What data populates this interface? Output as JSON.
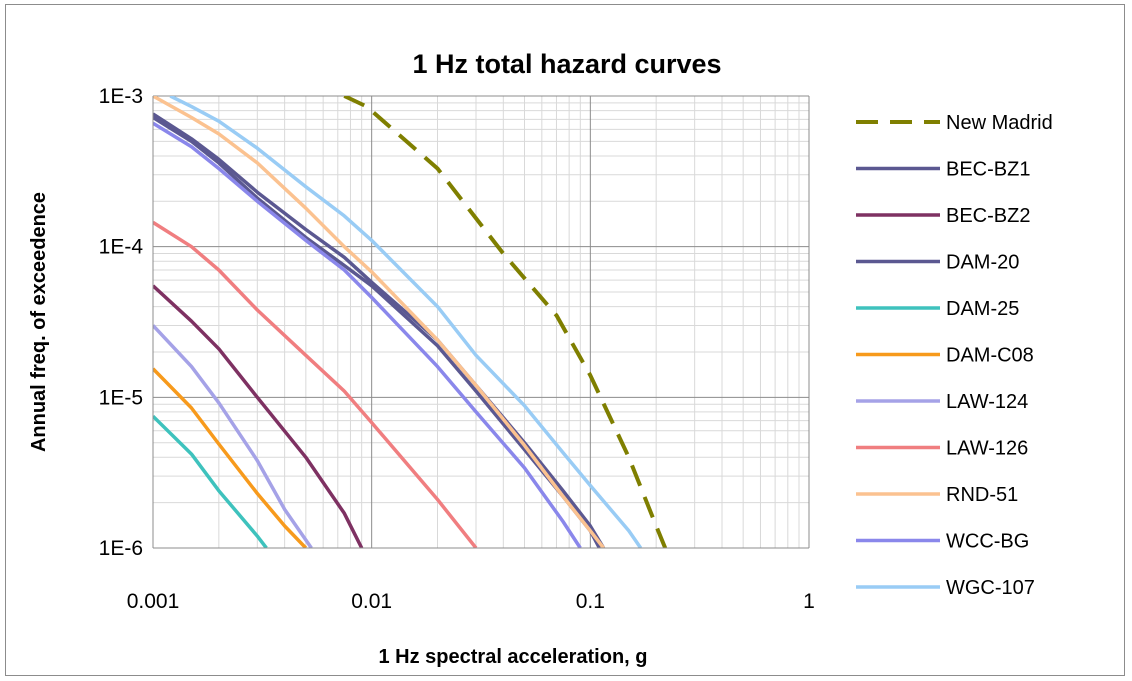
{
  "chart_data": {
    "type": "line",
    "title": "1  Hz total hazard curves",
    "xlabel": "1 Hz spectral acceleration, g",
    "ylabel": "Annual freq. of exceedence",
    "x_scale": "log",
    "y_scale": "log",
    "xlim": [
      0.001,
      1
    ],
    "ylim": [
      1e-06,
      0.001
    ],
    "x_ticks": [
      0.001,
      0.01,
      0.1,
      1
    ],
    "x_tick_labels": [
      "0.001",
      "0.01",
      "0.1",
      "1"
    ],
    "y_ticks": [
      1e-06,
      1e-05,
      0.0001,
      0.001
    ],
    "y_tick_labels": [
      "1E-6",
      "1E-5",
      "1E-4",
      "1E-3"
    ],
    "grid": true,
    "legend_position": "right",
    "series": [
      {
        "name": "New Madrid",
        "color": "#7f7f00",
        "dash": true,
        "points": [
          [
            0.0075,
            0.001
          ],
          [
            0.0095,
            0.00085
          ],
          [
            0.02,
            0.00033
          ],
          [
            0.04,
            9e-05
          ],
          [
            0.07,
            3.5e-05
          ],
          [
            0.1,
            1.4e-05
          ],
          [
            0.15,
            4e-06
          ],
          [
            0.2,
            1.4e-06
          ],
          [
            0.22,
            1e-06
          ]
        ]
      },
      {
        "name": "BEC-BZ1",
        "color": "#5b5891",
        "dash": false,
        "points": [
          [
            0.001,
            0.00072
          ],
          [
            0.0015,
            0.0005
          ],
          [
            0.002,
            0.00036
          ],
          [
            0.003,
            0.00021
          ],
          [
            0.005,
            0.000115
          ],
          [
            0.0075,
            7.5e-05
          ],
          [
            0.01,
            5.5e-05
          ],
          [
            0.02,
            2.2e-05
          ],
          [
            0.03,
            1.1e-05
          ],
          [
            0.05,
            4.5e-06
          ],
          [
            0.075,
            2.2e-06
          ],
          [
            0.1,
            1.3e-06
          ],
          [
            0.11,
            1e-06
          ]
        ]
      },
      {
        "name": "BEC-BZ2",
        "color": "#7e3162",
        "dash": false,
        "points": [
          [
            0.001,
            5.5e-05
          ],
          [
            0.0015,
            3.2e-05
          ],
          [
            0.002,
            2.1e-05
          ],
          [
            0.003,
            1e-05
          ],
          [
            0.005,
            4e-06
          ],
          [
            0.0075,
            1.7e-06
          ],
          [
            0.009,
            1e-06
          ]
        ]
      },
      {
        "name": "DAM-20",
        "color": "#5b5891",
        "dash": false,
        "points": [
          [
            0.001,
            0.00076
          ],
          [
            0.0015,
            0.00052
          ],
          [
            0.002,
            0.00038
          ],
          [
            0.003,
            0.00023
          ],
          [
            0.005,
            0.00013
          ],
          [
            0.0075,
            8.5e-05
          ],
          [
            0.01,
            5.8e-05
          ],
          [
            0.02,
            2.4e-05
          ],
          [
            0.03,
            1.2e-05
          ],
          [
            0.05,
            5e-06
          ],
          [
            0.075,
            2.4e-06
          ],
          [
            0.1,
            1.4e-06
          ],
          [
            0.115,
            1e-06
          ]
        ]
      },
      {
        "name": "DAM-25",
        "color": "#3ec2bd",
        "dash": false,
        "points": [
          [
            0.001,
            7.5e-06
          ],
          [
            0.0015,
            4.2e-06
          ],
          [
            0.002,
            2.4e-06
          ],
          [
            0.003,
            1.2e-06
          ],
          [
            0.0033,
            1e-06
          ]
        ]
      },
      {
        "name": "DAM-C08",
        "color": "#f79a1c",
        "dash": false,
        "points": [
          [
            0.001,
            1.55e-05
          ],
          [
            0.0015,
            8.5e-06
          ],
          [
            0.002,
            4.9e-06
          ],
          [
            0.003,
            2.3e-06
          ],
          [
            0.004,
            1.4e-06
          ],
          [
            0.005,
            1e-06
          ]
        ]
      },
      {
        "name": "LAW-124",
        "color": "#a5a2e7",
        "dash": false,
        "points": [
          [
            0.001,
            3e-05
          ],
          [
            0.0015,
            1.6e-05
          ],
          [
            0.002,
            9.2e-06
          ],
          [
            0.003,
            3.8e-06
          ],
          [
            0.004,
            1.8e-06
          ],
          [
            0.0053,
            1e-06
          ]
        ]
      },
      {
        "name": "LAW-126",
        "color": "#f07e80",
        "dash": false,
        "points": [
          [
            0.001,
            0.000145
          ],
          [
            0.0015,
            0.0001
          ],
          [
            0.002,
            7e-05
          ],
          [
            0.003,
            3.8e-05
          ],
          [
            0.005,
            1.9e-05
          ],
          [
            0.0075,
            1.1e-05
          ],
          [
            0.01,
            6.8e-06
          ],
          [
            0.02,
            2.1e-06
          ],
          [
            0.03,
            1e-06
          ]
        ]
      },
      {
        "name": "RND-51",
        "color": "#fbc290",
        "dash": false,
        "points": [
          [
            0.001,
            0.001
          ],
          [
            0.0015,
            0.00072
          ],
          [
            0.002,
            0.00056
          ],
          [
            0.003,
            0.00036
          ],
          [
            0.005,
            0.00018
          ],
          [
            0.0075,
            0.0001
          ],
          [
            0.01,
            6.8e-05
          ],
          [
            0.02,
            2.4e-05
          ],
          [
            0.03,
            1.2e-05
          ],
          [
            0.05,
            4.8e-06
          ],
          [
            0.075,
            2.2e-06
          ],
          [
            0.1,
            1.3e-06
          ],
          [
            0.115,
            1e-06
          ]
        ]
      },
      {
        "name": "WCC-BG",
        "color": "#8a87eb",
        "dash": false,
        "points": [
          [
            0.001,
            0.00066
          ],
          [
            0.0015,
            0.00046
          ],
          [
            0.002,
            0.00033
          ],
          [
            0.003,
            0.0002
          ],
          [
            0.005,
            0.00011
          ],
          [
            0.0075,
            7e-05
          ],
          [
            0.01,
            4.6e-05
          ],
          [
            0.02,
            1.6e-05
          ],
          [
            0.03,
            8e-06
          ],
          [
            0.05,
            3.4e-06
          ],
          [
            0.075,
            1.5e-06
          ],
          [
            0.09,
            1e-06
          ]
        ]
      },
      {
        "name": "WGC-107",
        "color": "#99ccf5",
        "dash": false,
        "points": [
          [
            0.0012,
            0.001
          ],
          [
            0.0015,
            0.00085
          ],
          [
            0.002,
            0.00068
          ],
          [
            0.003,
            0.00045
          ],
          [
            0.005,
            0.00025
          ],
          [
            0.0075,
            0.00016
          ],
          [
            0.01,
            0.00011
          ],
          [
            0.02,
            4e-05
          ],
          [
            0.03,
            1.9e-05
          ],
          [
            0.05,
            8.8e-06
          ],
          [
            0.075,
            4.3e-06
          ],
          [
            0.1,
            2.6e-06
          ],
          [
            0.15,
            1.3e-06
          ],
          [
            0.17,
            1e-06
          ]
        ]
      }
    ]
  }
}
